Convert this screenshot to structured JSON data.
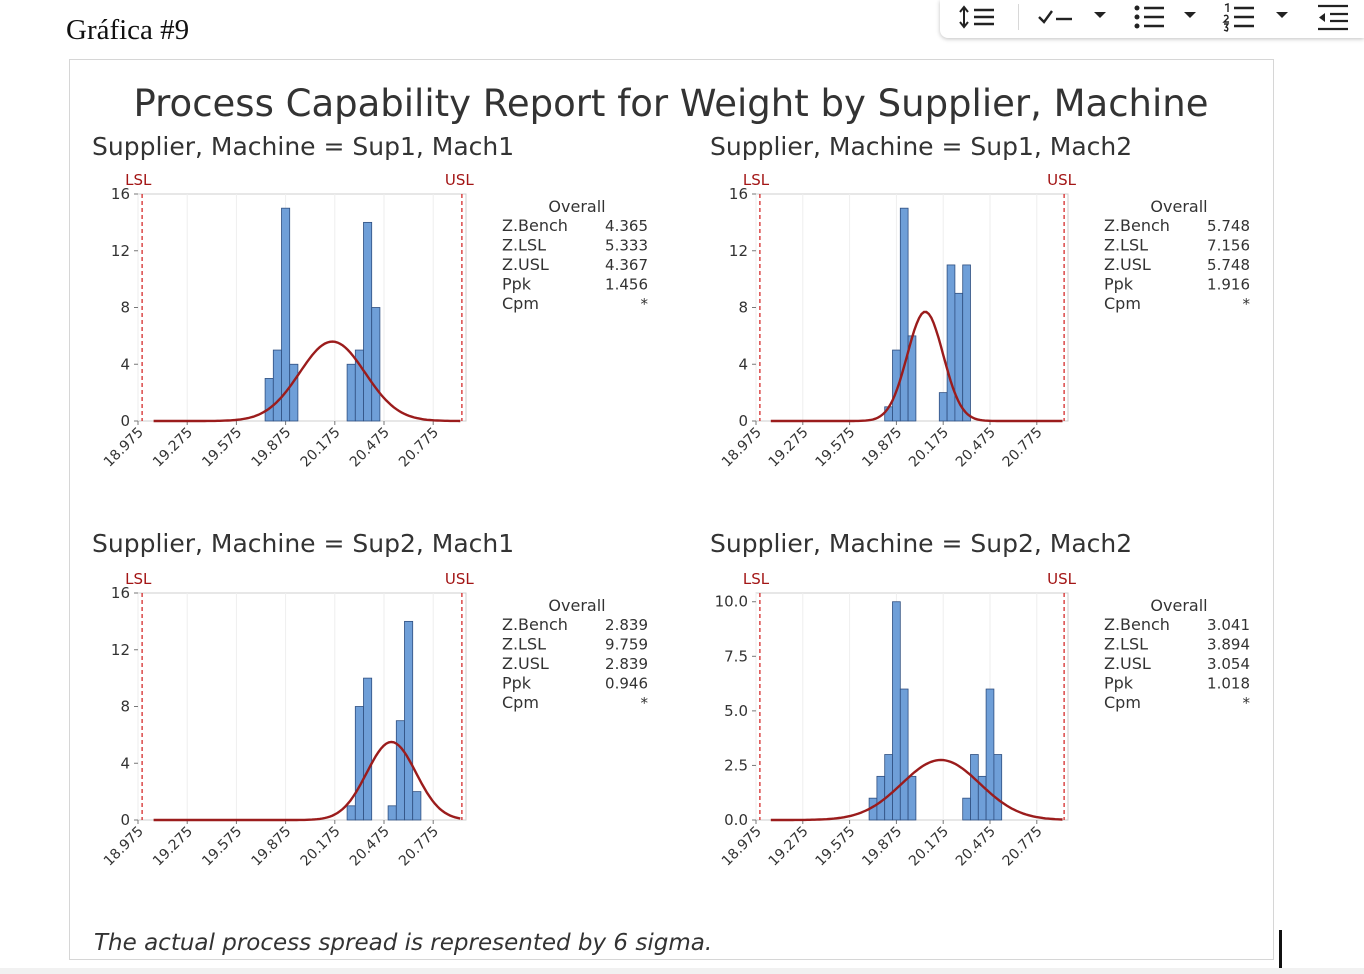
{
  "document": {
    "heading": "Gráfica #9"
  },
  "toolbar": {
    "icons": [
      "line-spacing-icon",
      "checklist-icon",
      "chevron-down-icon",
      "bulleted-list-icon",
      "chevron-down-icon",
      "numbered-list-icon",
      "chevron-down-icon",
      "decrease-indent-icon"
    ]
  },
  "chart_data": {
    "type": "histogram",
    "title": "Process Capability Report for Weight by Supplier, Machine",
    "footnote": "The actual process spread is represented by 6 sigma.",
    "colors": {
      "bars": "#6f9fd8",
      "bar_edge": "#2f4f80",
      "curve": "#9b1c1c",
      "spec": "#d11a1a"
    },
    "spec_labels": {
      "lsl": "LSL",
      "usl": "USL"
    },
    "overall_label": "Overall",
    "stat_labels": [
      "Z.Bench",
      "Z.LSL",
      "Z.USL",
      "Ppk",
      "Cpm"
    ],
    "x_ticks": [
      "18.975",
      "19.275",
      "19.575",
      "19.875",
      "20.175",
      "20.475",
      "20.775"
    ],
    "xlim": [
      18.975,
      20.975
    ],
    "lsl": 19.0,
    "usl": 20.95,
    "bin_width": 0.05,
    "panels": [
      {
        "title": "Supplier, Machine = Sup1, Mach1",
        "y_ticks": [
          "0",
          "4",
          "8",
          "12",
          "16"
        ],
        "ylim": [
          0,
          16
        ],
        "bins": [
          [
            19.775,
            3
          ],
          [
            19.825,
            5
          ],
          [
            19.875,
            15
          ],
          [
            19.925,
            4
          ],
          [
            20.275,
            4
          ],
          [
            20.325,
            5
          ],
          [
            20.375,
            14
          ],
          [
            20.425,
            8
          ]
        ],
        "curve": {
          "mean": 20.16,
          "sd": 0.2,
          "peak": 5.6
        },
        "stats": [
          "4.365",
          "5.333",
          "4.367",
          "1.456",
          "*"
        ]
      },
      {
        "title": "Supplier, Machine = Sup1, Mach2",
        "y_ticks": [
          "0",
          "4",
          "8",
          "12",
          "16"
        ],
        "ylim": [
          0,
          16
        ],
        "bins": [
          [
            19.825,
            1
          ],
          [
            19.875,
            5
          ],
          [
            19.925,
            15
          ],
          [
            19.975,
            6
          ],
          [
            20.175,
            2
          ],
          [
            20.225,
            11
          ],
          [
            20.275,
            9
          ],
          [
            20.325,
            11
          ]
        ],
        "curve": {
          "mean": 20.06,
          "sd": 0.115,
          "peak": 7.7
        },
        "stats": [
          "5.748",
          "7.156",
          "5.748",
          "1.916",
          "*"
        ]
      },
      {
        "title": "Supplier, Machine = Sup2, Mach1",
        "y_ticks": [
          "0",
          "4",
          "8",
          "12",
          "16"
        ],
        "ylim": [
          0,
          16
        ],
        "bins": [
          [
            20.275,
            1
          ],
          [
            20.325,
            8
          ],
          [
            20.375,
            10
          ],
          [
            20.525,
            1
          ],
          [
            20.575,
            7
          ],
          [
            20.625,
            14
          ],
          [
            20.675,
            2
          ]
        ],
        "curve": {
          "mean": 20.52,
          "sd": 0.15,
          "peak": 5.5
        },
        "stats": [
          "2.839",
          "9.759",
          "2.839",
          "0.946",
          "*"
        ]
      },
      {
        "title": "Supplier, Machine = Sup2, Mach2",
        "y_ticks": [
          "0.0",
          "2.5",
          "5.0",
          "7.5",
          "10.0"
        ],
        "ylim": [
          0,
          10.4
        ],
        "bins": [
          [
            19.725,
            1
          ],
          [
            19.775,
            2
          ],
          [
            19.825,
            3
          ],
          [
            19.875,
            10
          ],
          [
            19.925,
            6
          ],
          [
            19.975,
            2
          ],
          [
            20.325,
            1
          ],
          [
            20.375,
            3
          ],
          [
            20.425,
            2
          ],
          [
            20.475,
            6
          ],
          [
            20.525,
            3
          ]
        ],
        "curve": {
          "mean": 20.16,
          "sd": 0.25,
          "peak": 2.75
        },
        "stats": [
          "3.041",
          "3.894",
          "3.054",
          "1.018",
          "*"
        ]
      }
    ]
  }
}
